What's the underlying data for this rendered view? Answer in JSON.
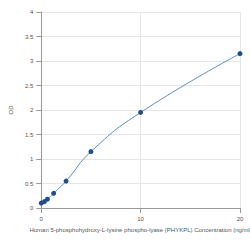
{
  "chart_data": {
    "type": "line",
    "x_label": "Human 5-phosphohydroxy-L-lysine phospho-lyase (PHYKPL) Concentration (ng/ml)",
    "y_label": "OD",
    "x": [
      0,
      0.3125,
      0.625,
      1.25,
      2.5,
      5,
      10,
      20
    ],
    "values": [
      0.1,
      0.13,
      0.18,
      0.3,
      0.55,
      1.15,
      1.95,
      3.15
    ],
    "color": "#1f4e8c",
    "marker": "circle",
    "line_style": "solid",
    "xlim": [
      0,
      20
    ],
    "xticks": [
      0,
      10,
      20
    ],
    "ylim": [
      0,
      4
    ],
    "yticks": [
      0,
      0.5,
      1,
      1.5,
      2,
      2.5,
      3,
      3.5,
      4
    ],
    "grid": true
  }
}
